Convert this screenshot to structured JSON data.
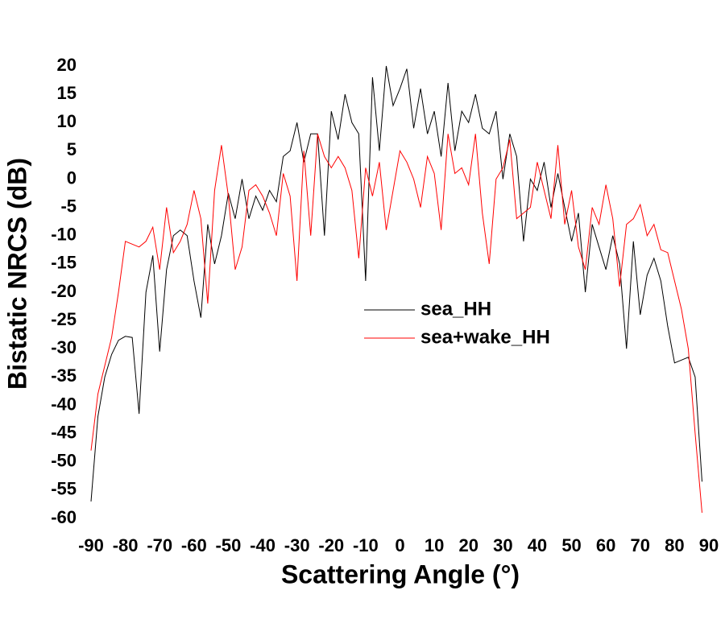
{
  "chart_data": {
    "type": "line",
    "xlabel": "Scattering Angle (°)",
    "ylabel": "Bistatic NRCS (dB)",
    "x": [
      -90,
      -88,
      -86,
      -84,
      -82,
      -80,
      -78,
      -76,
      -74,
      -72,
      -70,
      -68,
      -66,
      -64,
      -62,
      -60,
      -58,
      -56,
      -54,
      -52,
      -50,
      -48,
      -46,
      -44,
      -42,
      -40,
      -38,
      -36,
      -34,
      -32,
      -30,
      -28,
      -26,
      -24,
      -22,
      -20,
      -18,
      -16,
      -14,
      -12,
      -10,
      -8,
      -6,
      -4,
      -2,
      0,
      2,
      4,
      6,
      8,
      10,
      12,
      14,
      16,
      18,
      20,
      22,
      24,
      26,
      28,
      30,
      32,
      34,
      36,
      38,
      40,
      42,
      44,
      46,
      48,
      50,
      52,
      54,
      56,
      58,
      60,
      62,
      64,
      66,
      68,
      70,
      72,
      74,
      76,
      78,
      80,
      82,
      84,
      86,
      88
    ],
    "series": [
      {
        "name": "sea_HH",
        "color": "#000000",
        "values": [
          -57,
          -42,
          -35,
          -31,
          -28.5,
          -27.8,
          -28,
          -41.5,
          -20,
          -13.5,
          -30.5,
          -16,
          -10,
          -9,
          -10,
          -18,
          -24.5,
          -8,
          -15,
          -10,
          -2.5,
          -7,
          0,
          -7,
          -3,
          -5.5,
          -2,
          -4,
          4,
          5,
          10,
          3,
          8,
          8,
          -10,
          12,
          7,
          15,
          10,
          8,
          -18,
          18,
          5,
          20,
          13,
          16,
          19.5,
          9,
          16,
          8,
          12,
          4,
          17,
          5,
          12,
          10,
          15,
          9,
          8,
          12,
          0,
          8,
          4,
          -11,
          0,
          -2,
          3,
          -5,
          1,
          -5,
          -11,
          -6,
          -20,
          -8,
          -12,
          -16,
          -10,
          -15,
          -30,
          -11,
          -24,
          -17,
          -14,
          -18,
          -26,
          -32.5,
          -32,
          -31.5,
          -35,
          -53.5
        ]
      },
      {
        "name": "sea+wake_HH",
        "color": "#ff0000",
        "values": [
          -48,
          -38,
          -33,
          -28,
          -20,
          -11,
          -11.5,
          -12,
          -11,
          -8.5,
          -16,
          -5,
          -13,
          -11,
          -8,
          -2,
          -7,
          -22,
          -2,
          6,
          -3,
          -16,
          -12,
          -2,
          -1,
          -3,
          -6,
          -10,
          1,
          -3,
          -18,
          5,
          -10,
          8,
          4,
          2,
          4,
          2,
          -2,
          -14,
          2,
          -3,
          3,
          -9,
          -2,
          5,
          3,
          0,
          -5,
          4,
          1,
          -9,
          8,
          1,
          2,
          -1,
          8,
          -6,
          -15,
          0,
          2,
          7,
          -7,
          -6,
          -5,
          3,
          -2,
          -7,
          6,
          -8,
          -2,
          -12,
          -16,
          -5,
          -8,
          -1,
          -7,
          -19,
          -8,
          -7,
          -4.5,
          -10,
          -8,
          -12.5,
          -13,
          -18,
          -23,
          -30,
          -45,
          -59
        ]
      }
    ],
    "xlim": [
      -90,
      90
    ],
    "xticks": [
      -90,
      -80,
      -70,
      -60,
      -50,
      -40,
      -30,
      -20,
      -10,
      0,
      10,
      20,
      30,
      40,
      50,
      60,
      70,
      80,
      90
    ],
    "ylim": [
      -60,
      20
    ],
    "yticks": [
      -60,
      -55,
      -50,
      -45,
      -40,
      -35,
      -30,
      -25,
      -20,
      -15,
      -10,
      -5,
      0,
      5,
      10,
      15,
      20
    ],
    "grid": false
  }
}
